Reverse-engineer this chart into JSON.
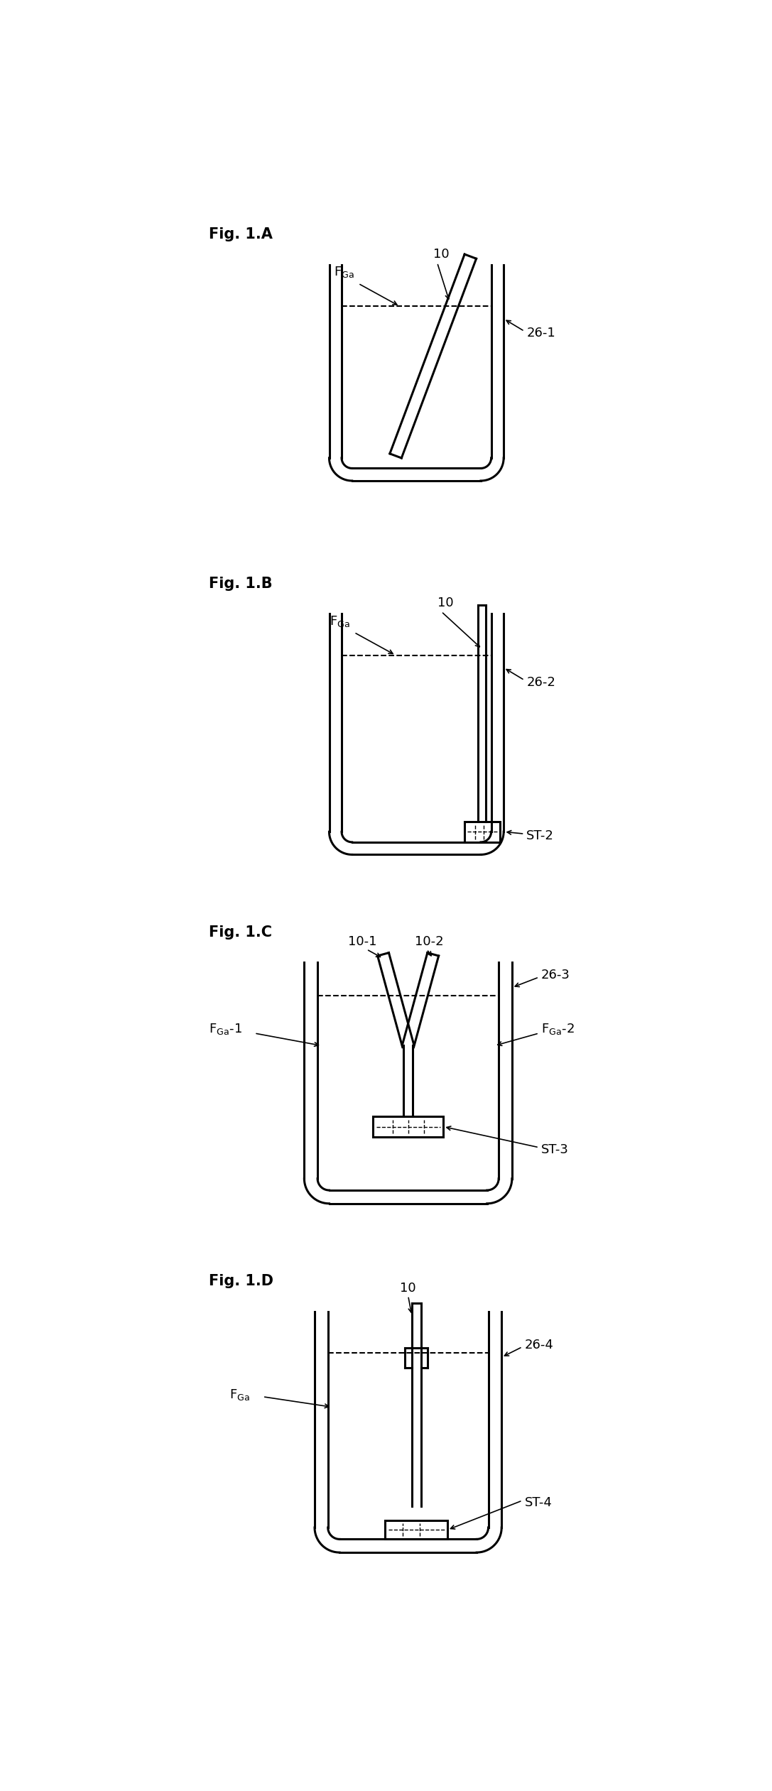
{
  "fig_labels": [
    "Fig. 1.A",
    "Fig. 1.B",
    "Fig. 1.C",
    "Fig. 1.D"
  ],
  "background_color": "#ffffff",
  "line_color": "#000000",
  "lw": 2.2,
  "font_size_label": 15,
  "font_size_annot": 13
}
